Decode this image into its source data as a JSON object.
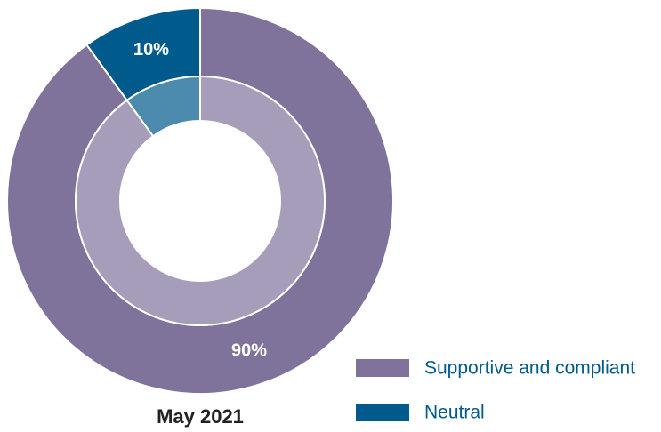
{
  "chart_data": {
    "type": "donut",
    "title": "May 2021",
    "categories": [
      "Supportive and compliant",
      "Neutral"
    ],
    "values": [
      90,
      10
    ],
    "value_labels": [
      "90%",
      "10%"
    ],
    "colors": [
      "#7f739b",
      "#005a8c"
    ]
  }
}
